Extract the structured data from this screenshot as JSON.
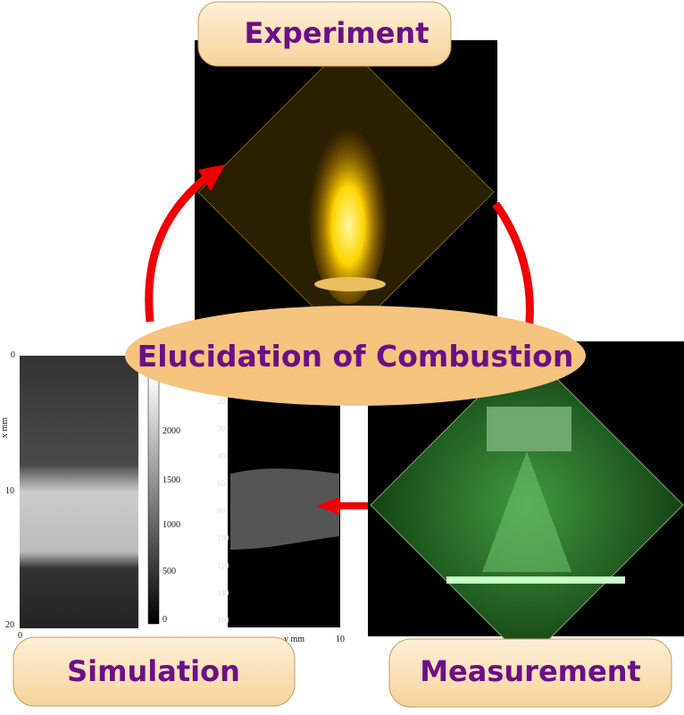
{
  "labels": {
    "experiment": "Experiment",
    "center": "Elucidation of Combustion",
    "simulation": "Simulation",
    "measurement": "Measurement"
  },
  "simulation_panel": {
    "y_ticks": [
      "0",
      "10",
      "20"
    ],
    "y_label": "x mm",
    "x_ticks": [
      "0"
    ],
    "colorbar_ticks": [
      "2000",
      "1500",
      "1000",
      "500",
      "0"
    ]
  },
  "measurement_panel": {
    "y_ticks": [
      "20",
      "30",
      "40",
      "60",
      "80",
      "100",
      "120",
      "140",
      "160"
    ],
    "x_label": "y mm",
    "x_ticks": [
      "10"
    ]
  }
}
